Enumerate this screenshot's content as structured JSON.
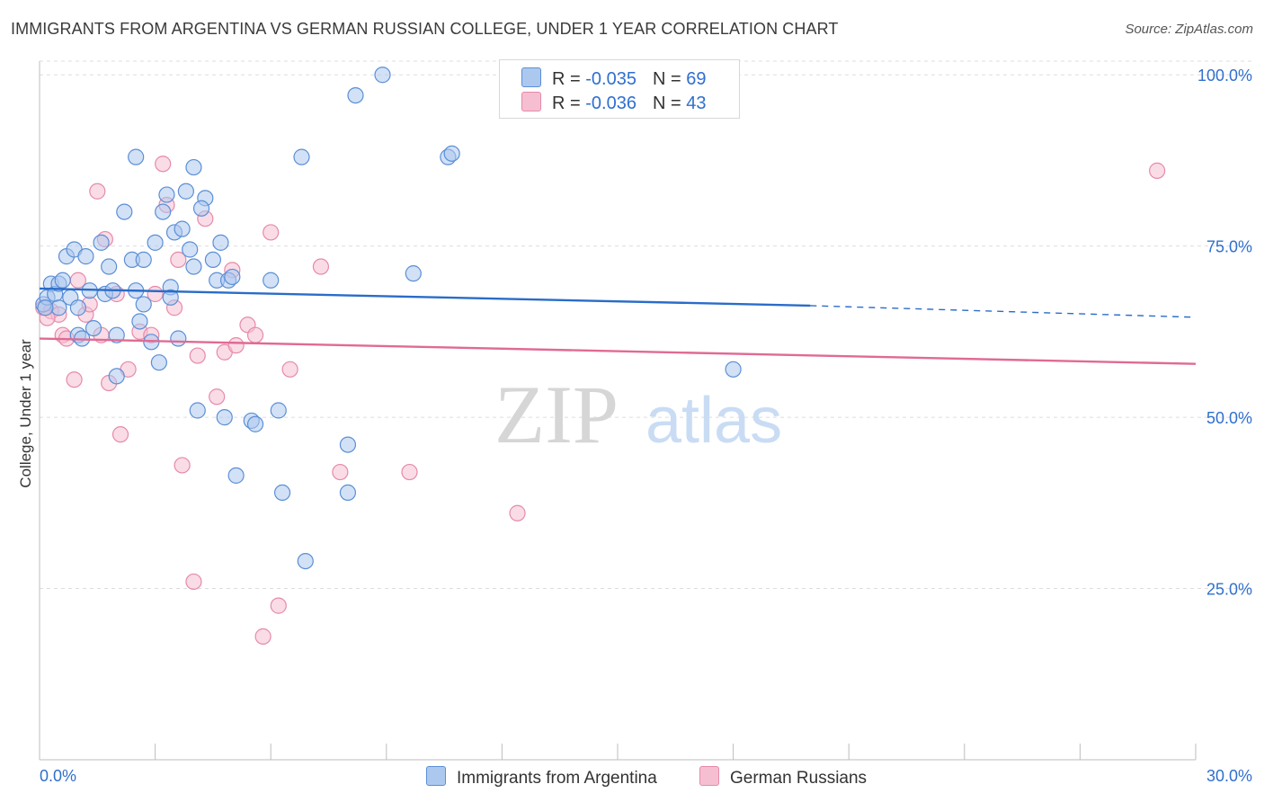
{
  "title": "IMMIGRANTS FROM ARGENTINA VS GERMAN RUSSIAN COLLEGE, UNDER 1 YEAR CORRELATION CHART",
  "source": "Source: ZipAtlas.com",
  "watermark": {
    "zip": "ZIP",
    "atlas": "atlas"
  },
  "legend": {
    "r_label": "R = ",
    "n_label": "N = ",
    "series": [
      {
        "name": "Immigrants from Argentina",
        "r": "-0.035",
        "n": "69"
      },
      {
        "name": "German Russians",
        "r": "-0.036",
        "n": "43"
      }
    ]
  },
  "colors": {
    "blue_fill": "#adc8ef",
    "blue_stroke": "#5b8fd6",
    "blue_line": "#2a6cc8",
    "pink_fill": "#f5bfd1",
    "pink_stroke": "#e68aa9",
    "pink_line": "#e06a94",
    "axis_text": "#2f6fcf",
    "grid": "#dddddd"
  },
  "chart_data": {
    "type": "scatter",
    "title": "IMMIGRANTS FROM ARGENTINA VS GERMAN RUSSIAN COLLEGE, UNDER 1 YEAR CORRELATION CHART",
    "xlabel": "",
    "ylabel": "College, Under 1 year",
    "xlim": [
      0,
      30
    ],
    "ylim": [
      0,
      102
    ],
    "x_tick_labels": [
      "0.0%",
      "30.0%"
    ],
    "y_ticks": [
      25,
      50,
      75,
      100
    ],
    "y_tick_labels": [
      "25.0%",
      "50.0%",
      "75.0%",
      "100.0%"
    ],
    "series": [
      {
        "name": "Immigrants from Argentina",
        "trend": {
          "x0": 0,
          "y0": 68.8,
          "x1": 20,
          "y1": 66.3,
          "dash_to_x": 30,
          "dash_to_y": 64.6
        },
        "points": [
          [
            0.1,
            66.5
          ],
          [
            0.2,
            67.5
          ],
          [
            0.3,
            69.5
          ],
          [
            0.4,
            68.0
          ],
          [
            0.5,
            66.0
          ],
          [
            0.5,
            69.5
          ],
          [
            0.6,
            70.0
          ],
          [
            0.7,
            73.5
          ],
          [
            0.8,
            67.5
          ],
          [
            0.9,
            74.5
          ],
          [
            1.0,
            62.0
          ],
          [
            1.0,
            66.0
          ],
          [
            1.2,
            73.5
          ],
          [
            1.3,
            68.5
          ],
          [
            1.4,
            63.0
          ],
          [
            1.6,
            75.5
          ],
          [
            1.7,
            68.0
          ],
          [
            1.8,
            72.0
          ],
          [
            1.9,
            68.5
          ],
          [
            2.0,
            62.0
          ],
          [
            2.0,
            56.0
          ],
          [
            2.2,
            80.0
          ],
          [
            2.4,
            73.0
          ],
          [
            2.5,
            68.5
          ],
          [
            2.5,
            88.0
          ],
          [
            2.6,
            64.0
          ],
          [
            2.7,
            73.0
          ],
          [
            2.7,
            66.5
          ],
          [
            2.9,
            61.0
          ],
          [
            3.0,
            75.5
          ],
          [
            3.1,
            58.0
          ],
          [
            3.2,
            80.0
          ],
          [
            3.3,
            82.5
          ],
          [
            3.4,
            69.0
          ],
          [
            3.5,
            77.0
          ],
          [
            3.6,
            61.5
          ],
          [
            3.7,
            77.5
          ],
          [
            3.8,
            83.0
          ],
          [
            3.9,
            74.5
          ],
          [
            4.0,
            72.0
          ],
          [
            4.0,
            86.5
          ],
          [
            4.1,
            51.0
          ],
          [
            4.3,
            82.0
          ],
          [
            4.5,
            73.0
          ],
          [
            4.6,
            70.0
          ],
          [
            4.7,
            75.5
          ],
          [
            4.8,
            50.0
          ],
          [
            4.9,
            70.0
          ],
          [
            5.0,
            70.5
          ],
          [
            5.1,
            41.5
          ],
          [
            5.5,
            49.5
          ],
          [
            5.6,
            49.0
          ],
          [
            6.0,
            70.0
          ],
          [
            6.2,
            51.0
          ],
          [
            6.3,
            39.0
          ],
          [
            6.8,
            88.0
          ],
          [
            6.9,
            29.0
          ],
          [
            8.0,
            46.0
          ],
          [
            8.0,
            39.0
          ],
          [
            8.2,
            97.0
          ],
          [
            8.9,
            100.0
          ],
          [
            9.7,
            71.0
          ],
          [
            10.6,
            88.0
          ],
          [
            10.7,
            88.5
          ],
          [
            18.0,
            57.0
          ],
          [
            0.15,
            66.0
          ],
          [
            1.1,
            61.5
          ],
          [
            3.4,
            67.5
          ],
          [
            4.2,
            80.5
          ]
        ]
      },
      {
        "name": "German Russians",
        "trend": {
          "x0": 0,
          "y0": 61.5,
          "x1": 30,
          "y1": 57.8
        },
        "points": [
          [
            0.1,
            66.0
          ],
          [
            0.3,
            65.5
          ],
          [
            0.5,
            65.0
          ],
          [
            0.6,
            62.0
          ],
          [
            0.7,
            61.5
          ],
          [
            0.9,
            55.5
          ],
          [
            1.0,
            70.0
          ],
          [
            1.2,
            65.0
          ],
          [
            1.3,
            66.5
          ],
          [
            1.5,
            83.0
          ],
          [
            1.6,
            62.0
          ],
          [
            1.7,
            76.0
          ],
          [
            1.8,
            55.0
          ],
          [
            2.0,
            68.0
          ],
          [
            2.1,
            47.5
          ],
          [
            2.3,
            57.0
          ],
          [
            2.6,
            62.5
          ],
          [
            2.9,
            62.0
          ],
          [
            3.0,
            68.0
          ],
          [
            3.2,
            87.0
          ],
          [
            3.3,
            81.0
          ],
          [
            3.5,
            66.0
          ],
          [
            3.6,
            73.0
          ],
          [
            3.7,
            43.0
          ],
          [
            4.0,
            26.0
          ],
          [
            4.1,
            59.0
          ],
          [
            4.3,
            79.0
          ],
          [
            4.6,
            53.0
          ],
          [
            4.8,
            59.5
          ],
          [
            5.0,
            71.5
          ],
          [
            5.1,
            60.5
          ],
          [
            5.4,
            63.5
          ],
          [
            5.6,
            62.0
          ],
          [
            5.8,
            18.0
          ],
          [
            6.0,
            77.0
          ],
          [
            6.2,
            22.5
          ],
          [
            6.5,
            57.0
          ],
          [
            7.3,
            72.0
          ],
          [
            7.8,
            42.0
          ],
          [
            9.6,
            42.0
          ],
          [
            12.4,
            36.0
          ],
          [
            29.0,
            86.0
          ],
          [
            0.2,
            64.5
          ]
        ]
      }
    ]
  }
}
